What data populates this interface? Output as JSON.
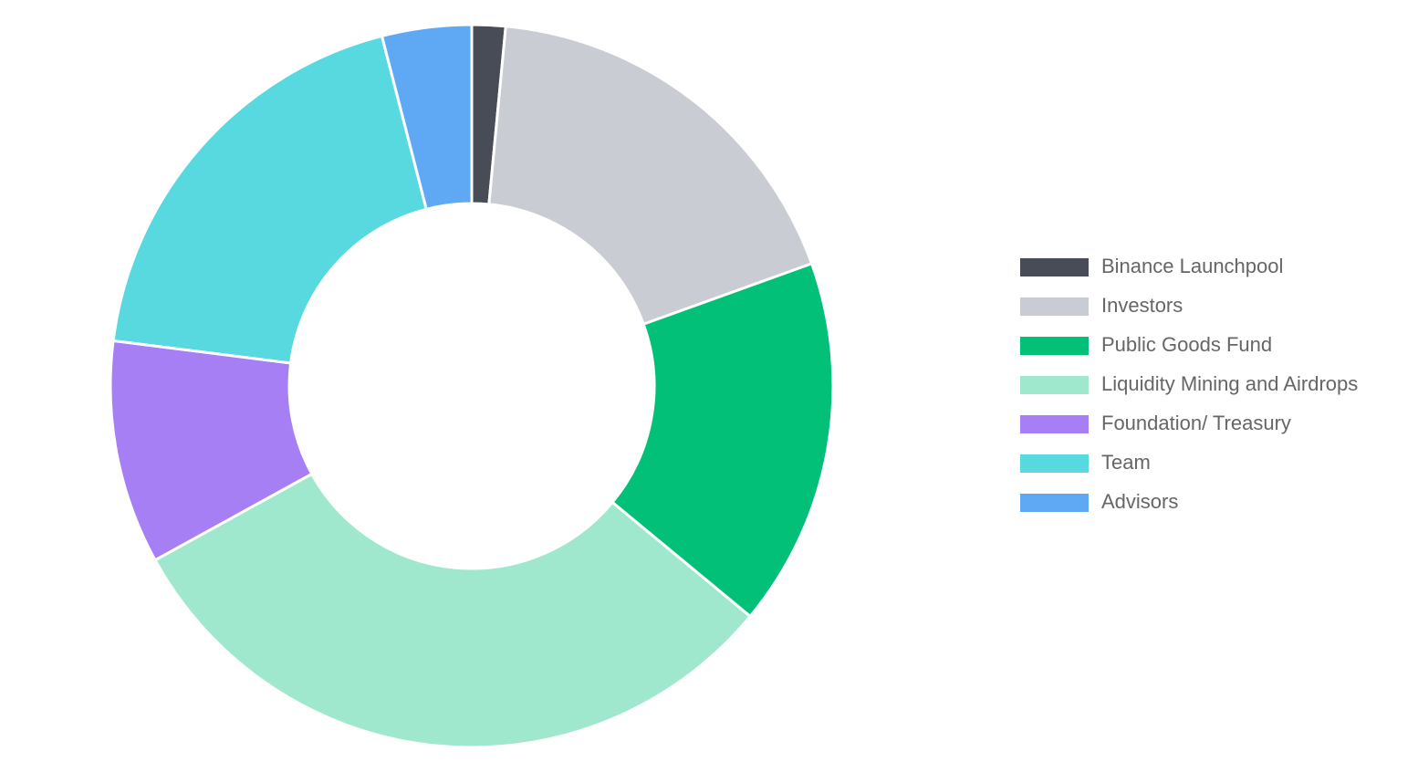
{
  "chart_data": {
    "type": "doughnut",
    "categories": [
      "Binance Launchpool",
      "Investors",
      "Public Goods Fund",
      "Liquidity Mining and Airdrops",
      "Foundation/ Treasury",
      "Team",
      "Advisors"
    ],
    "values": [
      1.5,
      18,
      16.5,
      31,
      10,
      19,
      4
    ],
    "colors": [
      "#474c57",
      "#c9ccd2",
      "#03c079",
      "#9fe8cd",
      "#a77ff5",
      "#58d9e0",
      "#5fa8f4"
    ],
    "legend": "right"
  }
}
